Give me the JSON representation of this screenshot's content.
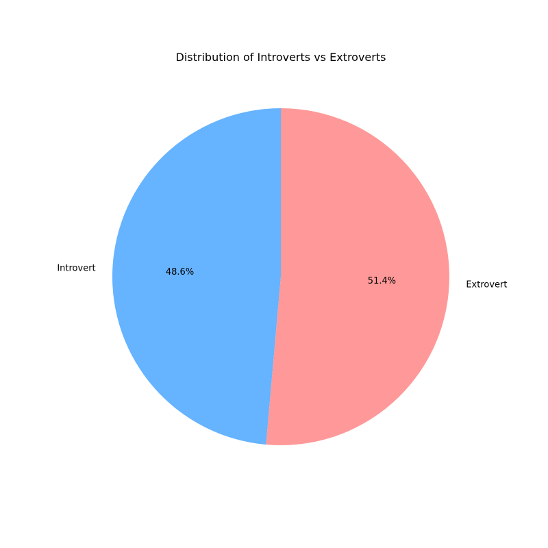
{
  "chart_data": {
    "type": "pie",
    "title": "Distribution of Introverts vs Extroverts",
    "categories": [
      "Introvert",
      "Extrovert"
    ],
    "values": [
      48.6,
      51.4
    ],
    "percent_labels": [
      "48.6%",
      "51.4%"
    ],
    "colors": [
      "#66b3ff",
      "#ff9999"
    ],
    "start_angle_deg": 90,
    "direction": "counterclockwise",
    "legend": "none"
  }
}
